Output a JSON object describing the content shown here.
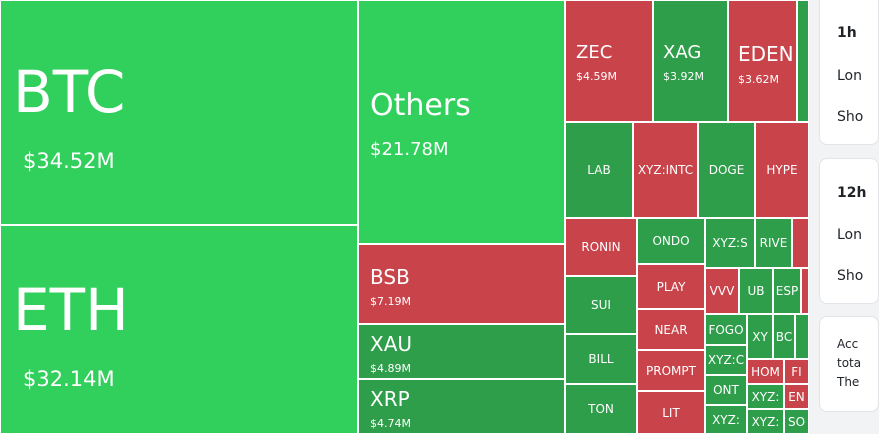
{
  "heatmap": {
    "colors": {
      "up": "#31cf5c",
      "up_dark": "#2e9e4a",
      "down": "#c8434a"
    },
    "tiles": {
      "btc": {
        "symbol": "BTC",
        "value": "$34.52M"
      },
      "eth": {
        "symbol": "ETH",
        "value": "$32.14M"
      },
      "others": {
        "symbol": "Others",
        "value": "$21.78M"
      },
      "bsb": {
        "symbol": "BSB",
        "value": "$7.19M"
      },
      "xau": {
        "symbol": "XAU",
        "value": "$4.89M"
      },
      "xrp": {
        "symbol": "XRP",
        "value": "$4.74M"
      },
      "zec": {
        "symbol": "ZEC",
        "value": "$4.59M"
      },
      "xag": {
        "symbol": "XAG",
        "value": "$3.92M"
      },
      "eden": {
        "symbol": "EDEN",
        "value": "$3.62M"
      },
      "lab": "LAB",
      "xyzintc": "XYZ:INTC",
      "doge": "DOGE",
      "hype": "HYPE",
      "ronin": "RONIN",
      "sui": "SUI",
      "bill": "BILL",
      "ton": "TON",
      "ondo": "ONDO",
      "play": "PLAY",
      "near": "NEAR",
      "prompt": "PROMPT",
      "lit": "LIT",
      "xyzs": "XYZ:S",
      "river": "RIVE",
      "vvv": "VVV",
      "ub": "UB",
      "esp": "ESP",
      "fogo": "FOGO",
      "xyzc": "XYZ:C",
      "ont": "ONT",
      "xyzx": "XYZ:",
      "xy": "XY",
      "bo": "BC",
      "hom": "HOM",
      "fi": "FI",
      "xyzc2": "XYZ:",
      "en": "EN",
      "xyzs2": "XYZ:",
      "so": "SO"
    }
  },
  "panel": {
    "card1": {
      "title": "1h",
      "long": "Lon",
      "short": "Sho"
    },
    "card2": {
      "title": "12h",
      "long": "Lon",
      "short": "Sho"
    },
    "card3": {
      "line1": "Acc",
      "line2": "tota",
      "line3": "The"
    }
  }
}
